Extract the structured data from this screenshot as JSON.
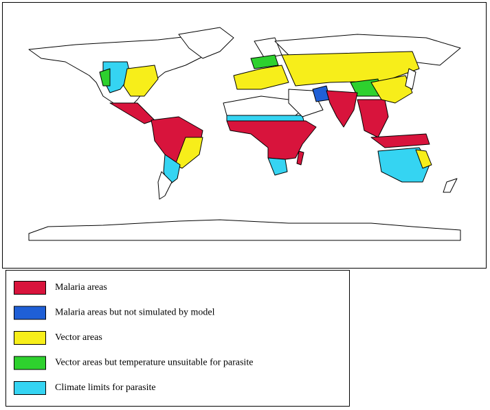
{
  "legend": {
    "items": [
      {
        "label": "Malaria areas",
        "color": "#d8143c"
      },
      {
        "label": "Malaria areas but not simulated by model",
        "color": "#1f5fd6"
      },
      {
        "label": "Vector areas",
        "color": "#f7ee1a"
      },
      {
        "label": "Vector areas but temperature unsuitable for parasite",
        "color": "#2ed12e"
      },
      {
        "label": "Climate limits for parasite",
        "color": "#35d4f2"
      }
    ]
  }
}
